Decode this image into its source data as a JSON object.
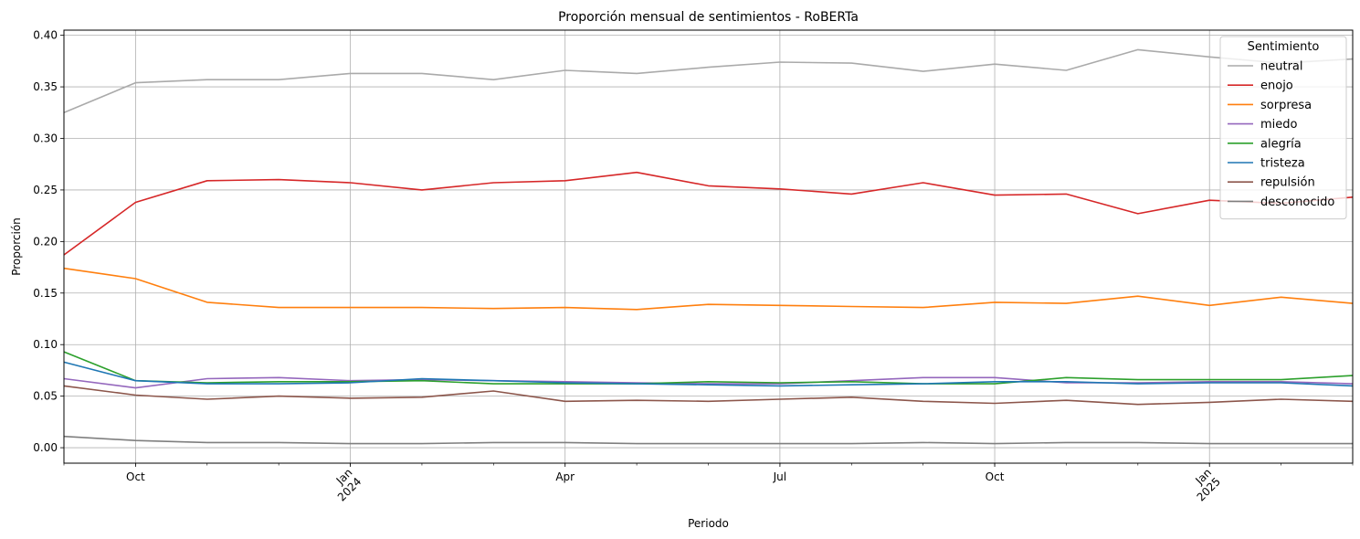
{
  "chart_data": {
    "type": "line",
    "title": "Proporción mensual de sentimientos - RoBERTa",
    "xlabel": "Periodo",
    "ylabel": "Proporción",
    "x": [
      "2023-09",
      "2023-10",
      "2023-11",
      "2023-12",
      "2024-01",
      "2024-02",
      "2024-03",
      "2024-04",
      "2024-05",
      "2024-06",
      "2024-07",
      "2024-08",
      "2024-09",
      "2024-10",
      "2024-11",
      "2024-12",
      "2025-01",
      "2025-02",
      "2025-03"
    ],
    "ylim": [
      -0.015,
      0.405
    ],
    "grid": true,
    "legend_placement": "top-right",
    "legend_title": "Sentimiento",
    "x_ticks": [
      {
        "x": "2023-10",
        "label": "Oct",
        "label2": "",
        "rotated": false,
        "major": true
      },
      {
        "x": "2024-01",
        "label": "Jan",
        "label2": "2024",
        "rotated": true,
        "major": true
      },
      {
        "x": "2024-04",
        "label": "Apr",
        "label2": "",
        "rotated": false,
        "major": true
      },
      {
        "x": "2024-07",
        "label": "Jul",
        "label2": "",
        "rotated": false,
        "major": true
      },
      {
        "x": "2024-10",
        "label": "Oct",
        "label2": "",
        "rotated": false,
        "major": true
      },
      {
        "x": "2025-01",
        "label": "Jan",
        "label2": "2025",
        "rotated": true,
        "major": true
      }
    ],
    "y_ticks": [
      {
        "value": 0.0,
        "label": "0.00"
      },
      {
        "value": 0.05,
        "label": "0.05"
      },
      {
        "value": 0.1,
        "label": "0.10"
      },
      {
        "value": 0.15,
        "label": "0.15"
      },
      {
        "value": 0.2,
        "label": "0.20"
      },
      {
        "value": 0.25,
        "label": "0.25"
      },
      {
        "value": 0.3,
        "label": "0.30"
      },
      {
        "value": 0.35,
        "label": "0.35"
      },
      {
        "value": 0.4,
        "label": "0.40"
      }
    ],
    "series": [
      {
        "name": "neutral",
        "color": "#aaaaaa",
        "values": [
          0.325,
          0.354,
          0.357,
          0.357,
          0.363,
          0.363,
          0.357,
          0.366,
          0.363,
          0.369,
          0.374,
          0.373,
          0.365,
          0.372,
          0.366,
          0.386,
          0.379,
          0.373,
          0.377
        ]
      },
      {
        "name": "enojo",
        "color": "#d62728",
        "values": [
          0.187,
          0.238,
          0.259,
          0.26,
          0.257,
          0.25,
          0.257,
          0.259,
          0.267,
          0.254,
          0.251,
          0.246,
          0.257,
          0.245,
          0.246,
          0.227,
          0.24,
          0.237,
          0.243
        ]
      },
      {
        "name": "sorpresa",
        "color": "#ff7f0e",
        "values": [
          0.174,
          0.164,
          0.141,
          0.136,
          0.136,
          0.136,
          0.135,
          0.136,
          0.134,
          0.139,
          0.138,
          0.137,
          0.136,
          0.141,
          0.14,
          0.147,
          0.138,
          0.146,
          0.14
        ]
      },
      {
        "name": "miedo",
        "color": "#9467bd",
        "values": [
          0.067,
          0.058,
          0.067,
          0.068,
          0.065,
          0.066,
          0.065,
          0.064,
          0.063,
          0.062,
          0.062,
          0.065,
          0.068,
          0.068,
          0.063,
          0.063,
          0.064,
          0.064,
          0.062
        ]
      },
      {
        "name": "alegría",
        "color": "#2ca02c",
        "values": [
          0.093,
          0.065,
          0.063,
          0.064,
          0.064,
          0.065,
          0.062,
          0.062,
          0.062,
          0.064,
          0.063,
          0.064,
          0.062,
          0.062,
          0.068,
          0.066,
          0.066,
          0.066,
          0.07
        ]
      },
      {
        "name": "tristeza",
        "color": "#1f77b4",
        "values": [
          0.083,
          0.065,
          0.062,
          0.062,
          0.063,
          0.067,
          0.065,
          0.063,
          0.062,
          0.061,
          0.06,
          0.061,
          0.062,
          0.064,
          0.064,
          0.062,
          0.063,
          0.063,
          0.06
        ]
      },
      {
        "name": "repulsión",
        "color": "#8c564b",
        "values": [
          0.06,
          0.051,
          0.047,
          0.05,
          0.048,
          0.049,
          0.055,
          0.045,
          0.046,
          0.045,
          0.047,
          0.049,
          0.045,
          0.043,
          0.046,
          0.042,
          0.044,
          0.047,
          0.045
        ]
      },
      {
        "name": "desconocido",
        "color": "#7f7f7f",
        "values": [
          0.011,
          0.007,
          0.005,
          0.005,
          0.004,
          0.004,
          0.005,
          0.005,
          0.004,
          0.004,
          0.004,
          0.004,
          0.005,
          0.004,
          0.005,
          0.005,
          0.004,
          0.004,
          0.004
        ]
      }
    ]
  }
}
